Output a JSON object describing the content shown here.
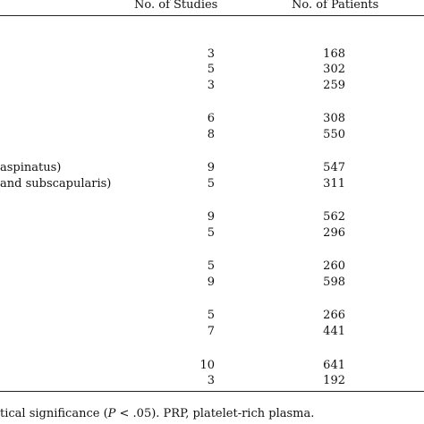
{
  "table": {
    "headers": {
      "studies": "No. of Studies",
      "patients": "No. of Patients"
    },
    "rows": [
      {
        "label": "",
        "studies": "3",
        "patients": "168"
      },
      {
        "label": "",
        "studies": "5",
        "patients": "302"
      },
      {
        "label": "",
        "studies": "3",
        "patients": "259"
      },
      {
        "label": "",
        "studies": "6",
        "patients": "308"
      },
      {
        "label": "",
        "studies": "8",
        "patients": "550"
      },
      {
        "label": "aspinatus)",
        "studies": "9",
        "patients": "547"
      },
      {
        "label": "and subscapularis)",
        "studies": "5",
        "patients": "311"
      },
      {
        "label": "",
        "studies": "9",
        "patients": "562"
      },
      {
        "label": "",
        "studies": "5",
        "patients": "296"
      },
      {
        "label": "",
        "studies": "5",
        "patients": "260"
      },
      {
        "label": "",
        "studies": "9",
        "patients": "598"
      },
      {
        "label": "",
        "studies": "5",
        "patients": "266"
      },
      {
        "label": "",
        "studies": "7",
        "patients": "441"
      },
      {
        "label": "",
        "studies": "10",
        "patients": "641"
      },
      {
        "label": "",
        "studies": "3",
        "patients": "192"
      }
    ]
  },
  "footnote": {
    "pre": "tical significance (",
    "p": "P",
    "post": " < .05). PRP, platelet-rich plasma."
  }
}
